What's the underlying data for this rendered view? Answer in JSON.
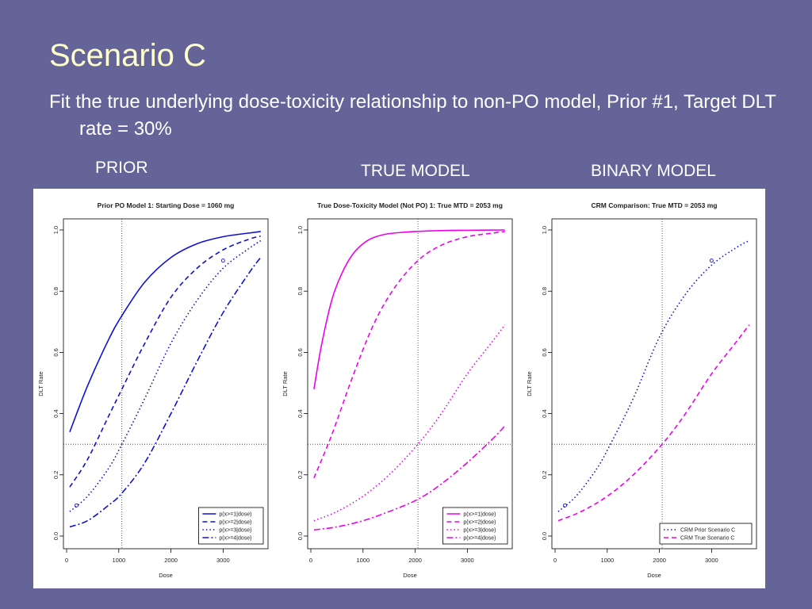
{
  "slide": {
    "title": "Scenario C",
    "body": "Fit the true underlying dose-toxicity relationship to non-PO model, Prior #1, Target DLT rate = 30%",
    "captions": [
      "PRIOR",
      "TRUE MODEL",
      "BINARY MODEL"
    ]
  },
  "colors": {
    "background": "#646499",
    "title": "#ffffcc",
    "blue": "#1010d0",
    "magenta": "#ee00ee"
  },
  "chart_data": [
    {
      "type": "line",
      "title": "Prior PO Model 1: Starting Dose = 1060 mg",
      "xlabel": "Dose",
      "ylabel": "DLT Rate",
      "xlim": [
        0,
        3800
      ],
      "ylim": [
        0,
        1
      ],
      "xticks": [
        0,
        1000,
        2000,
        3000
      ],
      "yticks": [
        0.0,
        0.2,
        0.4,
        0.6,
        0.8,
        1.0
      ],
      "reference": {
        "x": 1060,
        "y": 0.3
      },
      "legend_position": "bottom-right",
      "series": [
        {
          "name": "p(x>=1|dose)",
          "color": "#1010d0",
          "dash": "solid",
          "x": [
            60,
            400,
            800,
            1060,
            1500,
            2000,
            2500,
            3000,
            3500,
            3720
          ],
          "y": [
            0.34,
            0.49,
            0.64,
            0.72,
            0.83,
            0.91,
            0.955,
            0.978,
            0.99,
            0.995
          ],
          "markers": []
        },
        {
          "name": "p(x>=2|dose)",
          "color": "#1010d0",
          "dash": "dashed",
          "x": [
            60,
            400,
            800,
            1060,
            1500,
            2000,
            2500,
            3000,
            3500,
            3720
          ],
          "y": [
            0.16,
            0.25,
            0.39,
            0.48,
            0.63,
            0.78,
            0.875,
            0.935,
            0.97,
            0.98
          ],
          "markers": []
        },
        {
          "name": "p(x>=3|dose)",
          "color": "#1010d0",
          "dash": "dotted",
          "x": [
            60,
            400,
            800,
            1060,
            1500,
            2000,
            2500,
            3000,
            3500,
            3720
          ],
          "y": [
            0.08,
            0.13,
            0.22,
            0.3,
            0.45,
            0.63,
            0.77,
            0.875,
            0.94,
            0.965
          ],
          "markers": [
            [
              190,
              0.1
            ],
            [
              3000,
              0.9
            ]
          ]
        },
        {
          "name": "p(x>=4|dose)",
          "color": "#1010d0",
          "dash": "dashdot",
          "x": [
            60,
            400,
            800,
            1060,
            1500,
            2000,
            2500,
            3000,
            3500,
            3720
          ],
          "y": [
            0.03,
            0.05,
            0.1,
            0.14,
            0.24,
            0.4,
            0.57,
            0.73,
            0.86,
            0.91
          ],
          "markers": []
        }
      ]
    },
    {
      "type": "line",
      "title": "True Dose-Toxicity Model (Not PO) 1: True MTD = 2053 mg",
      "xlabel": "Dose",
      "ylabel": "DLT Rate",
      "xlim": [
        0,
        3800
      ],
      "ylim": [
        0,
        1
      ],
      "xticks": [
        0,
        1000,
        2000,
        3000
      ],
      "yticks": [
        0.0,
        0.2,
        0.4,
        0.6,
        0.8,
        1.0
      ],
      "reference": {
        "x": 2053,
        "y": 0.3
      },
      "legend_position": "bottom-right",
      "series": [
        {
          "name": "p(x>=1|dose)",
          "color": "#ee00ee",
          "dash": "solid",
          "x": [
            60,
            200,
            400,
            600,
            800,
            1000,
            1200,
            1500,
            2000,
            2500,
            3000,
            3720
          ],
          "y": [
            0.48,
            0.62,
            0.77,
            0.86,
            0.92,
            0.955,
            0.975,
            0.988,
            0.995,
            0.998,
            0.999,
            1.0
          ],
          "markers": []
        },
        {
          "name": "p(x>=2|dose)",
          "color": "#ee00ee",
          "dash": "dashed",
          "x": [
            60,
            400,
            800,
            1200,
            1600,
            2053,
            2500,
            3000,
            3500,
            3720
          ],
          "y": [
            0.19,
            0.33,
            0.52,
            0.69,
            0.81,
            0.9,
            0.95,
            0.978,
            0.99,
            0.995
          ],
          "markers": []
        },
        {
          "name": "p(x>=3|dose)",
          "color": "#ee00ee",
          "dash": "dotted",
          "x": [
            60,
            500,
            1000,
            1500,
            2053,
            2500,
            3000,
            3500,
            3720
          ],
          "y": [
            0.05,
            0.08,
            0.13,
            0.2,
            0.3,
            0.4,
            0.53,
            0.64,
            0.69
          ],
          "markers": []
        },
        {
          "name": "p(x>=4|dose)",
          "color": "#ee00ee",
          "dash": "dashdot",
          "x": [
            60,
            500,
            1000,
            1500,
            2053,
            2500,
            3000,
            3500,
            3720
          ],
          "y": [
            0.02,
            0.03,
            0.05,
            0.08,
            0.12,
            0.17,
            0.24,
            0.32,
            0.36
          ],
          "markers": []
        }
      ]
    },
    {
      "type": "line",
      "title": "CRM Comparison: True MTD = 2053 mg",
      "xlabel": "Dose",
      "ylabel": "DLT Rate",
      "xlim": [
        0,
        3800
      ],
      "ylim": [
        0,
        1
      ],
      "xticks": [
        0,
        1000,
        2000,
        3000
      ],
      "yticks": [
        0.0,
        0.2,
        0.4,
        0.6,
        0.8,
        1.0
      ],
      "reference": {
        "x": 2053,
        "y": 0.3
      },
      "legend_position": "bottom-right",
      "series": [
        {
          "name": "CRM Prior Scenario C",
          "color": "#1010d0",
          "dash": "dotted",
          "x": [
            60,
            400,
            800,
            1060,
            1500,
            2000,
            2500,
            3000,
            3500,
            3720
          ],
          "y": [
            0.08,
            0.13,
            0.22,
            0.3,
            0.45,
            0.65,
            0.79,
            0.885,
            0.945,
            0.965
          ],
          "markers": [
            [
              190,
              0.1
            ],
            [
              3000,
              0.9
            ]
          ]
        },
        {
          "name": "CRM True Scenario C",
          "color": "#ee00ee",
          "dash": "dashed",
          "x": [
            60,
            500,
            1000,
            1500,
            2053,
            2500,
            3000,
            3500,
            3720
          ],
          "y": [
            0.05,
            0.08,
            0.13,
            0.2,
            0.3,
            0.4,
            0.53,
            0.64,
            0.69
          ],
          "markers": []
        }
      ]
    }
  ]
}
